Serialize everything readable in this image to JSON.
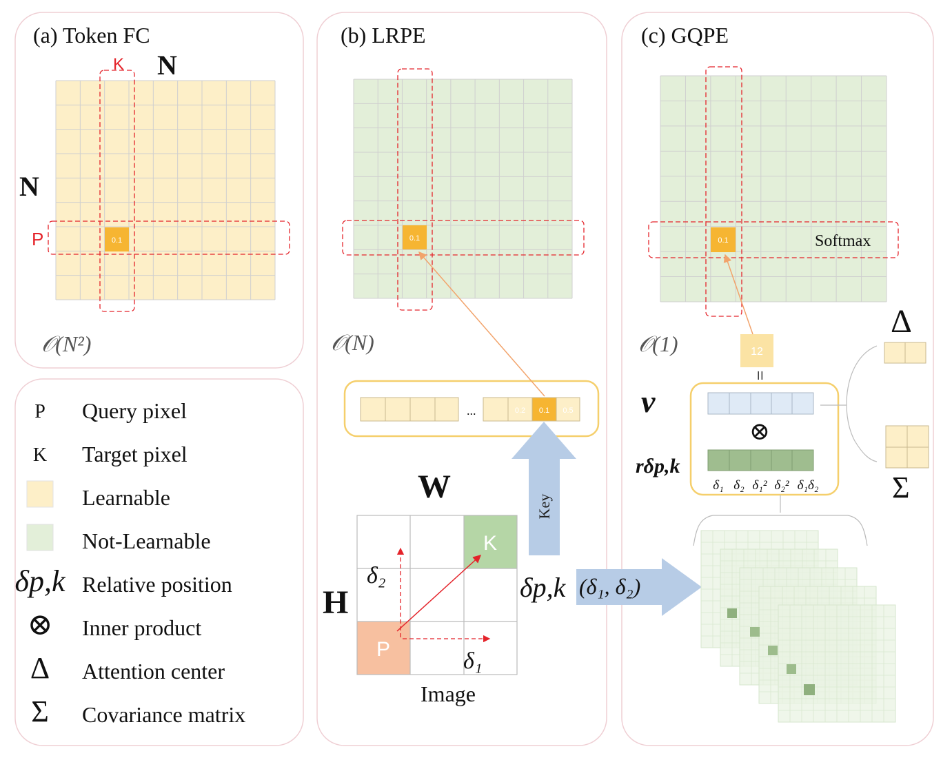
{
  "panels": {
    "a": {
      "title": "(a) Token FC",
      "col_label": "K",
      "top_label": "N",
      "side_label": "N",
      "row_label": "P",
      "cell_value": "0.1",
      "complexity": "𝒪(N²)"
    },
    "b": {
      "title": "(b) LRPE",
      "cell_value": "0.1",
      "complexity": "𝒪(N)",
      "vector_cells": [
        "0.2",
        "0.1",
        "0.5"
      ],
      "ellipsis": "...",
      "key_label": "Key",
      "image_label": "Image",
      "w_label": "W",
      "h_label": "H",
      "p_label": "P",
      "k_label": "K",
      "delta1_label": "δ₁",
      "delta2_label": "δ₂",
      "delta_pk_label": "δp,k",
      "delta_pair_label": "(δ₁, δ₂)"
    },
    "c": {
      "title": "(c) GQPE",
      "cell_value": "0.1",
      "complexity": "𝒪(1)",
      "softmax_label": "Softmax",
      "result_value": "12",
      "equals": "=",
      "v_label": "v",
      "r_label": "rδp,k",
      "otimes": "⊗",
      "delta_terms": [
        "δ₁",
        "δ₂",
        "δ₁²",
        "δ₂²",
        "δ₁δ₂"
      ],
      "delta_sym": "Δ",
      "sigma_sym": "Σ"
    }
  },
  "legend": [
    {
      "symbol": "P",
      "text": "Query pixel"
    },
    {
      "symbol": "K",
      "text": "Target pixel"
    },
    {
      "symbol": "",
      "text": "Learnable",
      "swatch": "#fdefc8"
    },
    {
      "symbol": "",
      "text": "Not-Learnable",
      "swatch": "#e3efd9"
    },
    {
      "symbol": "δp,k",
      "text": "Relative position"
    },
    {
      "symbol": "⊗",
      "text": "Inner product"
    },
    {
      "symbol": "Δ",
      "text": "Attention center"
    },
    {
      "symbol": "Σ",
      "text": "Covariance matrix"
    }
  ],
  "colors": {
    "learnable": "#fdefc8",
    "not_learnable": "#e3efd9",
    "highlight": "#f6b532",
    "accent_red": "#e4232a",
    "arrow_blue": "#b7cce6",
    "query": "#f7c0a0",
    "target": "#b5d6a6",
    "panel_border": "#efcfd4",
    "vector_border": "#f5cf6c",
    "v_vector": "#dfeaf6",
    "r_vector": "#9fbd8f"
  }
}
